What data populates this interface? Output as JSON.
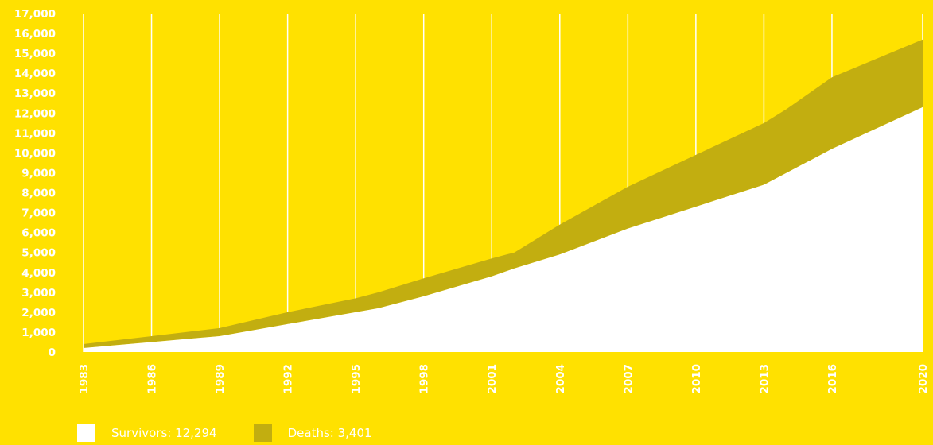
{
  "colors": {
    "background": "#FFE100",
    "survivors": "#FFFFFF",
    "deaths": "#C2AE10",
    "grid": "#FFFFFF",
    "text": "#FFFFFF"
  },
  "legend": [
    {
      "label": "Survivors: 12,294",
      "color": "#FFFFFF"
    },
    {
      "label": "Deaths: 3,401",
      "color": "#C2AE10"
    }
  ],
  "chart_data": {
    "type": "area",
    "stacked": true,
    "title": "",
    "xlabel": "",
    "ylabel": "",
    "xlim": [
      1983,
      2020
    ],
    "ylim": [
      0,
      17000
    ],
    "grid": "vertical",
    "legend_position": "bottom-left",
    "yticks": [
      "0",
      "1,000",
      "2,000",
      "3,000",
      "4,000",
      "5,000",
      "6,000",
      "7,000",
      "8,000",
      "9,000",
      "10,000",
      "11,000",
      "12,000",
      "13,000",
      "14,000",
      "15,000",
      "16,000",
      "17,000"
    ],
    "xticks": [
      "1983",
      "1986",
      "1989",
      "1992",
      "1995",
      "1998",
      "2001",
      "2004",
      "2007",
      "2010",
      "2013",
      "2016",
      "2020"
    ],
    "x": [
      1983,
      1986,
      1989,
      1992,
      1995,
      1996,
      1998,
      2001,
      2002,
      2004,
      2007,
      2010,
      2013,
      2014,
      2016,
      2020
    ],
    "series": [
      {
        "name": "Survivors",
        "values": [
          200,
          500,
          800,
          1400,
          2000,
          2200,
          2800,
          3800,
          4200,
          4900,
          6200,
          7300,
          8400,
          9000,
          10200,
          12294
        ]
      },
      {
        "name": "Deaths",
        "values": [
          200,
          300,
          400,
          600,
          700,
          800,
          900,
          900,
          800,
          1500,
          2100,
          2600,
          3100,
          3200,
          3600,
          3401
        ]
      }
    ]
  }
}
